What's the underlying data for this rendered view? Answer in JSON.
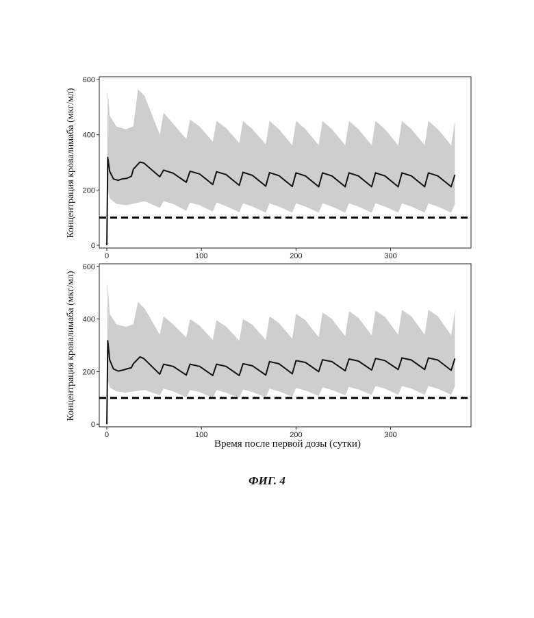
{
  "chart_data": [
    {
      "type": "line",
      "ylabel": "Концентрация кровалимаба (мкг/мл)",
      "xlabel": "",
      "xlim": [
        -8,
        385
      ],
      "ylim": [
        -10,
        610
      ],
      "xticks": [
        "0",
        "100",
        "200",
        "300"
      ],
      "yticks": [
        "0",
        "200",
        "400",
        "600"
      ],
      "threshold": 100,
      "grid": false,
      "series": [
        {
          "kind": "median",
          "x": [
            0,
            1,
            3,
            7,
            12,
            16,
            21,
            26,
            28,
            35,
            39,
            56,
            60,
            70,
            84,
            88,
            98,
            112,
            116,
            126,
            140,
            144,
            154,
            168,
            172,
            182,
            196,
            200,
            210,
            224,
            228,
            238,
            252,
            256,
            266,
            280,
            284,
            294,
            308,
            312,
            322,
            336,
            340,
            350,
            364,
            368
          ],
          "y": [
            0,
            318,
            268,
            240,
            235,
            240,
            242,
            250,
            275,
            301,
            298,
            248,
            272,
            261,
            228,
            268,
            258,
            220,
            266,
            256,
            217,
            264,
            253,
            214,
            263,
            252,
            213,
            262,
            251,
            212,
            262,
            251,
            212,
            262,
            251,
            212,
            262,
            251,
            212,
            262,
            251,
            212,
            262,
            251,
            212,
            255
          ]
        },
        {
          "kind": "band-upper",
          "x": [
            0,
            1,
            3,
            10,
            20,
            28,
            33,
            40,
            56,
            60,
            70,
            84,
            88,
            98,
            112,
            116,
            126,
            140,
            144,
            154,
            168,
            172,
            182,
            196,
            200,
            210,
            224,
            228,
            238,
            252,
            256,
            266,
            280,
            284,
            294,
            308,
            312,
            322,
            336,
            340,
            350,
            364,
            368
          ],
          "y": [
            200,
            560,
            470,
            430,
            420,
            430,
            565,
            540,
            400,
            480,
            440,
            385,
            455,
            430,
            375,
            450,
            425,
            370,
            450,
            420,
            365,
            450,
            420,
            362,
            450,
            420,
            362,
            450,
            420,
            362,
            450,
            420,
            362,
            450,
            420,
            362,
            450,
            420,
            362,
            450,
            420,
            362,
            450
          ]
        },
        {
          "kind": "band-lower",
          "x": [
            0,
            1,
            3,
            10,
            20,
            28,
            40,
            56,
            60,
            70,
            84,
            88,
            98,
            112,
            116,
            126,
            140,
            144,
            154,
            168,
            172,
            182,
            196,
            200,
            210,
            224,
            228,
            238,
            252,
            256,
            266,
            280,
            284,
            294,
            308,
            312,
            322,
            336,
            340,
            350,
            364,
            368
          ],
          "y": [
            0,
            200,
            170,
            150,
            145,
            150,
            160,
            135,
            160,
            150,
            125,
            155,
            145,
            122,
            155,
            142,
            120,
            152,
            140,
            118,
            152,
            140,
            118,
            152,
            140,
            118,
            152,
            140,
            118,
            152,
            140,
            118,
            152,
            140,
            118,
            152,
            140,
            118,
            152,
            140,
            118,
            150
          ]
        }
      ]
    },
    {
      "type": "line",
      "ylabel": "Концентрация кровалимаба (мкг/мл)",
      "xlabel": "Время после первой дозы (сутки)",
      "xlim": [
        -8,
        385
      ],
      "ylim": [
        -10,
        610
      ],
      "xticks": [
        "0",
        "100",
        "200",
        "300"
      ],
      "yticks": [
        "0",
        "200",
        "400",
        "600"
      ],
      "threshold": 100,
      "grid": false,
      "series": [
        {
          "kind": "median",
          "x": [
            0,
            1,
            3,
            7,
            12,
            16,
            21,
            26,
            28,
            35,
            39,
            56,
            60,
            70,
            84,
            88,
            98,
            112,
            116,
            126,
            140,
            144,
            154,
            168,
            172,
            182,
            196,
            200,
            210,
            224,
            228,
            238,
            252,
            256,
            266,
            280,
            284,
            294,
            308,
            312,
            322,
            336,
            340,
            350,
            364,
            368
          ],
          "y": [
            0,
            318,
            245,
            210,
            202,
            205,
            210,
            215,
            230,
            256,
            250,
            190,
            228,
            220,
            187,
            228,
            220,
            185,
            228,
            220,
            185,
            230,
            222,
            187,
            238,
            230,
            192,
            242,
            235,
            200,
            245,
            238,
            203,
            248,
            240,
            206,
            250,
            242,
            208,
            252,
            244,
            208,
            252,
            244,
            205,
            250
          ]
        },
        {
          "kind": "band-upper",
          "x": [
            0,
            1,
            3,
            10,
            20,
            28,
            33,
            40,
            56,
            60,
            70,
            84,
            88,
            98,
            112,
            116,
            126,
            140,
            144,
            154,
            168,
            172,
            182,
            196,
            200,
            210,
            224,
            228,
            238,
            252,
            256,
            266,
            280,
            284,
            294,
            308,
            312,
            322,
            336,
            340,
            350,
            364,
            368
          ],
          "y": [
            200,
            540,
            420,
            380,
            370,
            380,
            465,
            440,
            340,
            410,
            380,
            330,
            400,
            375,
            320,
            395,
            372,
            318,
            400,
            378,
            320,
            410,
            385,
            325,
            420,
            395,
            330,
            425,
            400,
            335,
            430,
            405,
            338,
            432,
            408,
            340,
            435,
            410,
            340,
            435,
            410,
            338,
            432
          ]
        },
        {
          "kind": "band-lower",
          "x": [
            0,
            1,
            3,
            10,
            20,
            28,
            40,
            56,
            60,
            70,
            84,
            88,
            98,
            112,
            116,
            126,
            140,
            144,
            154,
            168,
            172,
            182,
            196,
            200,
            210,
            224,
            228,
            238,
            252,
            256,
            266,
            280,
            284,
            294,
            308,
            312,
            322,
            336,
            340,
            350,
            364,
            368
          ],
          "y": [
            0,
            170,
            140,
            125,
            120,
            125,
            130,
            110,
            135,
            125,
            102,
            130,
            122,
            100,
            130,
            120,
            100,
            132,
            122,
            102,
            135,
            125,
            105,
            138,
            128,
            108,
            140,
            130,
            110,
            142,
            132,
            112,
            145,
            135,
            112,
            145,
            135,
            112,
            145,
            135,
            112,
            145
          ]
        }
      ]
    }
  ],
  "figure": {
    "caption": "ФИГ. 4"
  }
}
